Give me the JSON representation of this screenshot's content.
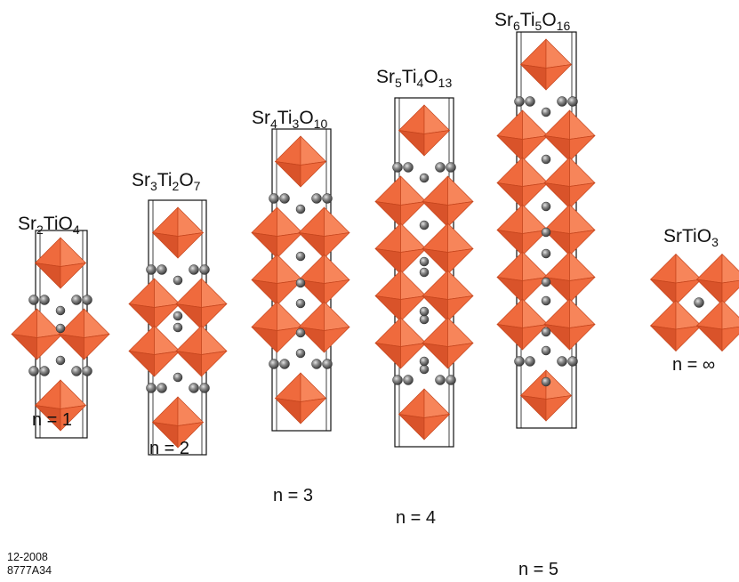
{
  "colors": {
    "octahedron_light": "#f7855a",
    "octahedron_mid": "#ef6a3d",
    "octahedron_dark": "#d9532a",
    "edge": "#c4441c",
    "atom": "#6e6e6e",
    "atom_highlight": "#e4e4e4",
    "cell_line": "#111111"
  },
  "icons": [
    "octahedron",
    "sr-atom"
  ],
  "structures": [
    {
      "formula": [
        {
          "t": "Sr"
        },
        {
          "t": "2",
          "sub": true
        },
        {
          "t": "TiO"
        },
        {
          "t": "4",
          "sub": true
        }
      ],
      "n_label": "n = 1",
      "n": 1
    },
    {
      "formula": [
        {
          "t": "Sr"
        },
        {
          "t": "3",
          "sub": true
        },
        {
          "t": "Ti"
        },
        {
          "t": "2",
          "sub": true
        },
        {
          "t": "O"
        },
        {
          "t": "7",
          "sub": true
        }
      ],
      "n_label": "n = 2",
      "n": 2
    },
    {
      "formula": [
        {
          "t": "Sr"
        },
        {
          "t": "4",
          "sub": true
        },
        {
          "t": "Ti"
        },
        {
          "t": "3",
          "sub": true
        },
        {
          "t": "O"
        },
        {
          "t": "10",
          "sub": true
        }
      ],
      "n_label": "n = 3",
      "n": 3
    },
    {
      "formula": [
        {
          "t": "Sr"
        },
        {
          "t": "5",
          "sub": true
        },
        {
          "t": "Ti"
        },
        {
          "t": "4",
          "sub": true
        },
        {
          "t": "O"
        },
        {
          "t": "13",
          "sub": true
        }
      ],
      "n_label": "n = 4",
      "n": 4
    },
    {
      "formula": [
        {
          "t": "Sr"
        },
        {
          "t": "6",
          "sub": true
        },
        {
          "t": "Ti"
        },
        {
          "t": "5",
          "sub": true
        },
        {
          "t": "O"
        },
        {
          "t": "16",
          "sub": true
        }
      ],
      "n_label": "n = 5",
      "n": 5
    },
    {
      "formula": [
        {
          "t": "SrTiO"
        },
        {
          "t": "3",
          "sub": true
        }
      ],
      "n_label": "n = ∞",
      "n": "∞"
    }
  ],
  "footer": {
    "date": "12-2008",
    "code": "8777A34"
  }
}
